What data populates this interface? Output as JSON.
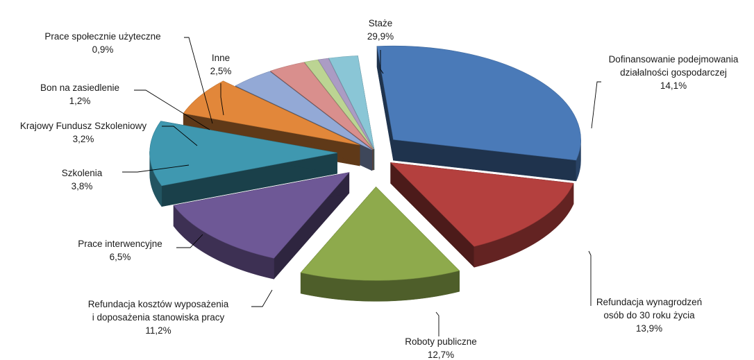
{
  "chart_data": {
    "type": "pie",
    "title": "",
    "legend": "none",
    "slices": [
      {
        "label": "Staże",
        "value": 29.9,
        "value_label": "29,9%",
        "color": "#4a7ab8"
      },
      {
        "label": "Dofinansowanie podejmowania działalności gospodarczej",
        "value": 14.1,
        "value_label": "14,1%",
        "color": "#b4403e"
      },
      {
        "label": "Refundacja wynagrodzeń osób do 30 roku życia",
        "value": 13.9,
        "value_label": "13,9%",
        "color": "#8eaa4c"
      },
      {
        "label": "Roboty publiczne",
        "value": 12.7,
        "value_label": "12,7%",
        "color": "#6e5896"
      },
      {
        "label": "Refundacja kosztów wyposażenia i doposażenia stanowiska pracy",
        "value": 11.2,
        "value_label": "11,2%",
        "color": "#3f98b0"
      },
      {
        "label": "Prace interwencyjne",
        "value": 6.5,
        "value_label": "6,5%",
        "color": "#e2873a"
      },
      {
        "label": "Szkolenia",
        "value": 3.8,
        "value_label": "3,8%",
        "color": "#93a9d6"
      },
      {
        "label": "Krajowy Fundusz Szkoleniowy",
        "value": 3.2,
        "value_label": "3,2%",
        "color": "#d98f8d"
      },
      {
        "label": "Bon na zasiedlenie",
        "value": 1.2,
        "value_label": "1,2%",
        "color": "#bcd493"
      },
      {
        "label": "Prace społecznie użyteczne",
        "value": 0.9,
        "value_label": "0,9%",
        "color": "#ab9cc4"
      },
      {
        "label": "Inne",
        "value": 2.5,
        "value_label": "2,5%",
        "color": "#8ac6d6"
      }
    ]
  }
}
